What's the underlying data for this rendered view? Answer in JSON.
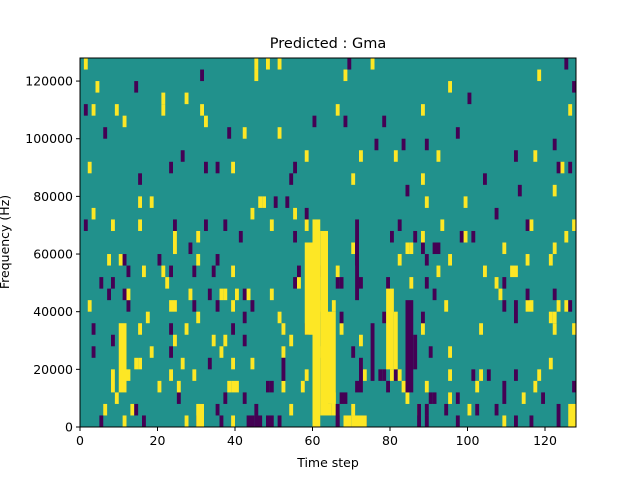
{
  "chart_data": {
    "type": "heatmap",
    "title": "Predicted : Gma",
    "xlabel": "Time step",
    "ylabel": "Frequency (Hz)",
    "xlim": [
      0,
      128
    ],
    "ylim": [
      0,
      128000
    ],
    "x_ticks": [
      0,
      20,
      40,
      60,
      80,
      100,
      120
    ],
    "x_tick_labels": [
      "0",
      "20",
      "40",
      "60",
      "80",
      "100",
      "120"
    ],
    "y_ticks": [
      0,
      20000,
      40000,
      60000,
      80000,
      100000,
      120000
    ],
    "y_tick_labels": [
      "0",
      "20000",
      "40000",
      "60000",
      "80000",
      "100000",
      "120000"
    ],
    "grid": false,
    "legend": "none",
    "colormap": "viridis (3 levels)",
    "levels": [
      {
        "value": 0,
        "color": "#440154"
      },
      {
        "value": 1,
        "color": "#21918c"
      },
      {
        "value": 2,
        "color": "#fde725"
      }
    ],
    "background_value": 1,
    "bin_width_hz": 4000,
    "high_value_cells": [
      {
        "x_start": 60,
        "x_end": 62,
        "y_start": 0,
        "y_end": 72000
      },
      {
        "x_start": 62,
        "x_end": 64,
        "y_start": 4000,
        "y_end": 68000
      },
      {
        "x_start": 58,
        "x_end": 60,
        "y_start": 32000,
        "y_end": 64000
      },
      {
        "x_start": 64,
        "x_end": 66,
        "y_start": 8000,
        "y_end": 40000
      },
      {
        "x_start": 70,
        "x_end": 74,
        "y_start": 0,
        "y_end": 4000
      },
      {
        "x_start": 79,
        "x_end": 81,
        "y_start": 20000,
        "y_end": 48000
      },
      {
        "x_start": 81,
        "x_end": 82,
        "y_start": 20000,
        "y_end": 40000
      },
      {
        "x_start": 10,
        "x_end": 12,
        "y_start": 12000,
        "y_end": 36000
      },
      {
        "x_start": 8,
        "x_end": 9,
        "y_start": 12000,
        "y_end": 20000
      },
      {
        "x_start": 68,
        "x_end": 70,
        "y_start": 0,
        "y_end": 4000
      },
      {
        "x_start": 30,
        "x_end": 32,
        "y_start": 0,
        "y_end": 8000
      },
      {
        "x_start": 126,
        "x_end": 128,
        "y_start": 0,
        "y_end": 8000
      }
    ],
    "low_value_cells": [
      {
        "x_start": 84,
        "x_end": 86,
        "y_start": 12000,
        "y_end": 44000
      },
      {
        "x_start": 86,
        "x_end": 87,
        "y_start": 20000,
        "y_end": 32000
      },
      {
        "x_start": 75,
        "x_end": 76,
        "y_start": 16000,
        "y_end": 36000
      },
      {
        "x_start": 45,
        "x_end": 47,
        "y_start": 0,
        "y_end": 4000
      },
      {
        "x_start": 66,
        "x_end": 67,
        "y_start": 0,
        "y_end": 8000
      },
      {
        "x_start": 71,
        "x_end": 72,
        "y_start": 44000,
        "y_end": 72000
      },
      {
        "x_start": 72,
        "x_end": 73,
        "y_start": 12000,
        "y_end": 24000
      },
      {
        "x_start": 43,
        "x_end": 45,
        "y_start": 0,
        "y_end": 4000
      },
      {
        "x_start": 48,
        "x_end": 50,
        "y_start": 0,
        "y_end": 4000
      },
      {
        "x_start": 87,
        "x_end": 88,
        "y_start": 0,
        "y_end": 8000
      },
      {
        "x_start": 52,
        "x_end": 53,
        "y_start": 16000,
        "y_end": 24000
      },
      {
        "x_start": 112,
        "x_end": 113,
        "y_start": 36000,
        "y_end": 44000
      },
      {
        "x_start": 123,
        "x_end": 124,
        "y_start": 0,
        "y_end": 8000
      },
      {
        "x_start": 109,
        "x_end": 110,
        "y_start": 8000,
        "y_end": 16000
      },
      {
        "x_start": 42,
        "x_end": 43,
        "y_start": 28000,
        "y_end": 32000
      },
      {
        "x_start": 20,
        "x_end": 21,
        "y_start": 56000,
        "y_end": 60000
      }
    ],
    "scattered_cells_note": "additional single-bin high and low cells scattered throughout"
  }
}
